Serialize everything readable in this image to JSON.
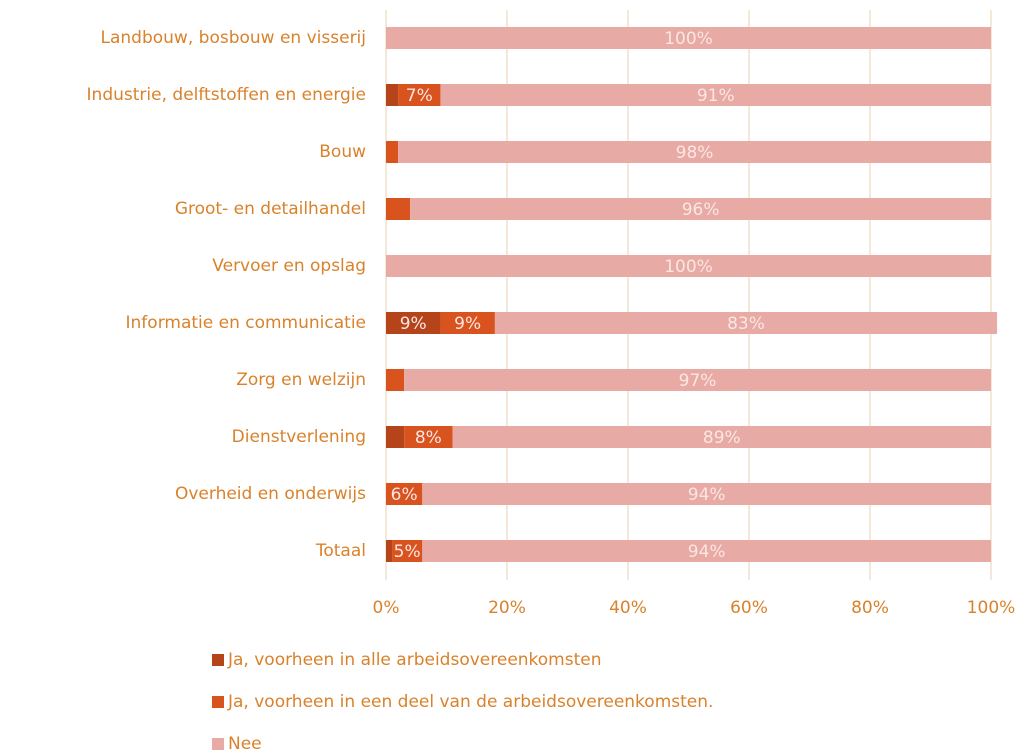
{
  "chart_data": {
    "type": "stacked-barh",
    "categories": [
      "Landbouw, bosbouw en visserij",
      "Industrie, delftstoffen en energie",
      "Bouw",
      "Groot- en detailhandel",
      "Vervoer en opslag",
      "Informatie en communicatie",
      "Zorg en welzijn",
      "Dienstverlening",
      "Overheid en onderwijs",
      "Totaal"
    ],
    "series": [
      {
        "name": "Ja, voorheen in alle arbeidsovereenkomsten",
        "color": "#b5441b",
        "values": [
          0,
          2,
          0,
          0,
          0,
          9,
          0,
          3,
          0,
          1
        ],
        "value_labels": [
          null,
          null,
          null,
          null,
          null,
          "9%",
          null,
          null,
          null,
          null
        ]
      },
      {
        "name": "Ja, voorheen in een deel van de arbeidsovereenkomsten.",
        "color": "#d9531e",
        "values": [
          0,
          7,
          2,
          4,
          0,
          9,
          3,
          8,
          6,
          5
        ],
        "value_labels": [
          null,
          "7%",
          null,
          null,
          null,
          "9%",
          null,
          "8%",
          "6%",
          "5%"
        ]
      },
      {
        "name": "Nee",
        "color": "#e8aaa4",
        "values": [
          100,
          91,
          98,
          96,
          100,
          83,
          97,
          89,
          94,
          94
        ],
        "value_labels": [
          "100%",
          "91%",
          "98%",
          "96%",
          "100%",
          "83%",
          "97%",
          "89%",
          "94%",
          "94%"
        ]
      }
    ],
    "xlim": [
      0,
      100
    ],
    "xticks": [
      {
        "value": 0,
        "label": "0%"
      },
      {
        "value": 20,
        "label": "20%"
      },
      {
        "value": 40,
        "label": "40%"
      },
      {
        "value": 60,
        "label": "60%"
      },
      {
        "value": 80,
        "label": "80%"
      },
      {
        "value": 100,
        "label": "100%"
      }
    ],
    "grid": true,
    "legend": "bottom"
  }
}
